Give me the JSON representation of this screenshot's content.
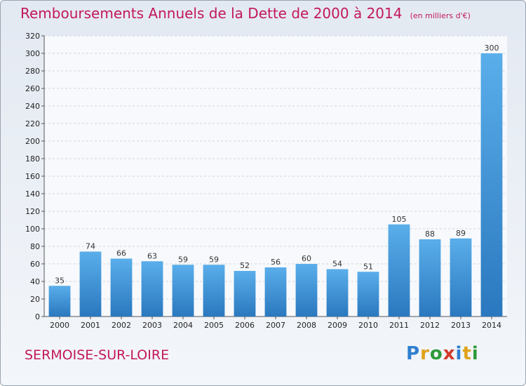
{
  "chart_data": {
    "type": "bar",
    "title": "Remboursements Annuels de la Dette de 2000 à 2014",
    "unit": "(en milliers d'€)",
    "categories": [
      "2000",
      "2001",
      "2002",
      "2003",
      "2004",
      "2005",
      "2006",
      "2007",
      "2008",
      "2009",
      "2010",
      "2011",
      "2012",
      "2013",
      "2014"
    ],
    "values": [
      35,
      74,
      66,
      63,
      59,
      59,
      52,
      56,
      60,
      54,
      51,
      105,
      88,
      89,
      300
    ],
    "ylim": [
      0,
      320
    ],
    "yticks": [
      0,
      20,
      40,
      60,
      80,
      100,
      120,
      140,
      160,
      180,
      200,
      220,
      240,
      260,
      280,
      300,
      320
    ],
    "grid": true,
    "bar_color": "#3a8fd6"
  },
  "location": "SERMOISE-SUR-LOIRE",
  "logo": {
    "letters": [
      "P",
      "r",
      "o",
      "x",
      "i",
      "t",
      "i"
    ],
    "colors": [
      "#2f7fd0",
      "#e0a21a",
      "#2f9a3a",
      "#d23a2a",
      "#2f7fd0",
      "#e0a21a",
      "#2f9a3a"
    ]
  }
}
